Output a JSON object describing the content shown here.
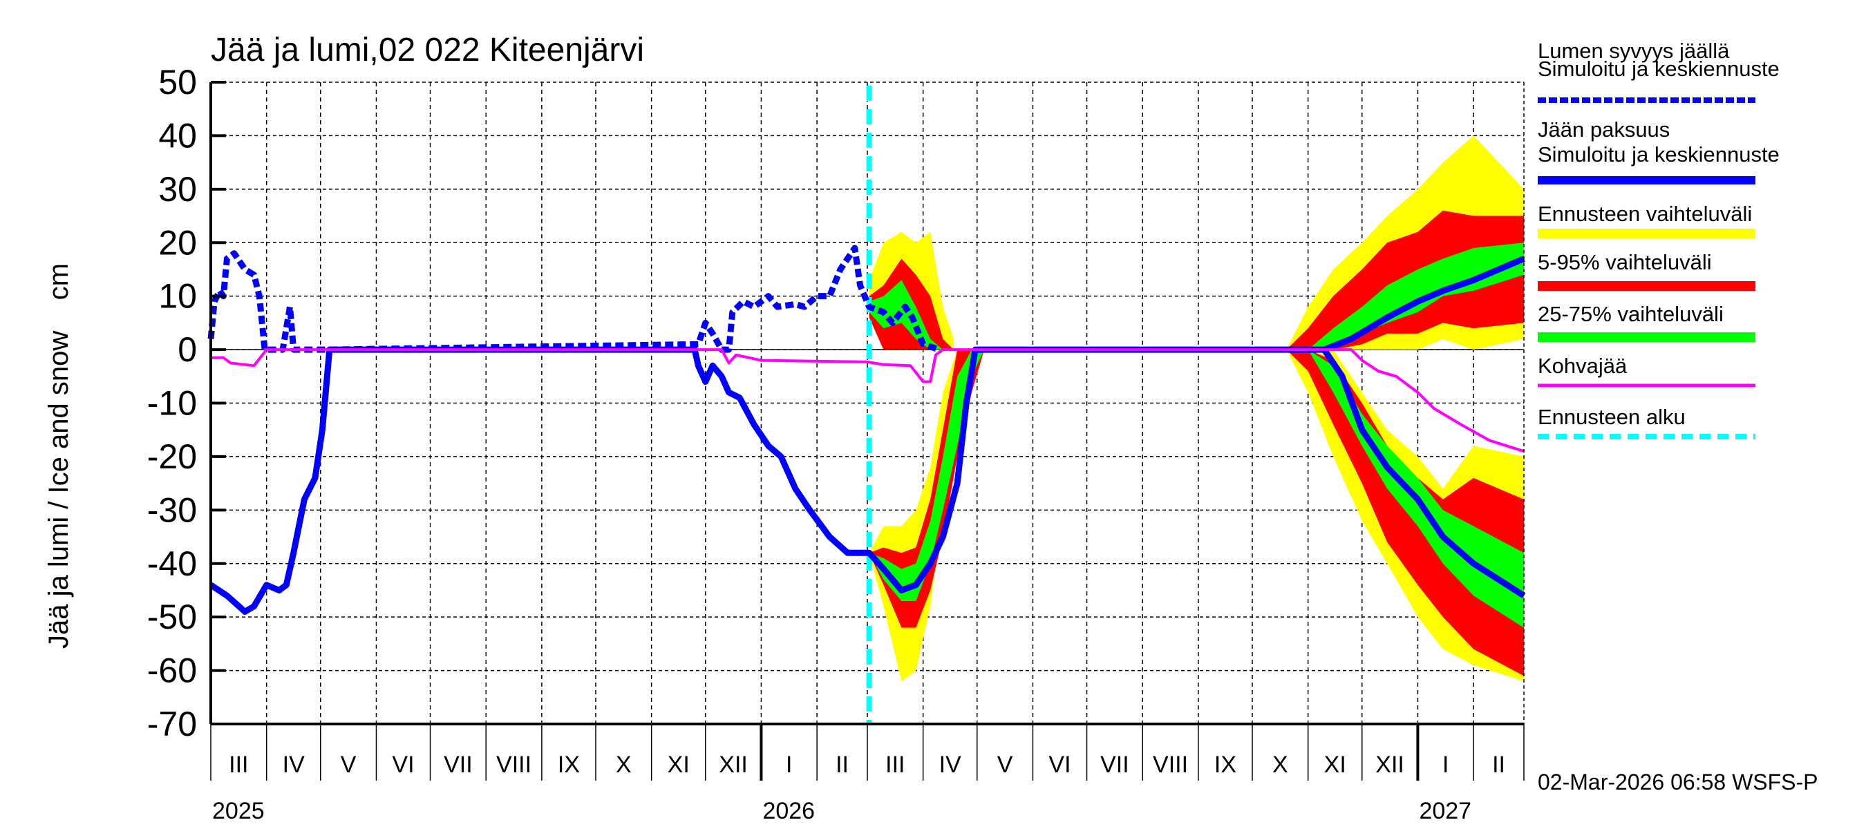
{
  "chart_data": {
    "type": "area",
    "title": "Jää ja lumi,02 022 Kiteenjärvi",
    "ylabel": "Jää ja lumi / Ice and snow    cm",
    "ylim": [
      -70,
      50
    ],
    "yticks": [
      50,
      40,
      30,
      20,
      10,
      0,
      -10,
      -20,
      -30,
      -40,
      -50,
      -60,
      -70
    ],
    "xlim": [
      "2025-03-01",
      "2027-03-01"
    ],
    "month_labels": [
      "III",
      "IV",
      "V",
      "VI",
      "VII",
      "VIII",
      "IX",
      "X",
      "XI",
      "XII",
      "I",
      "II",
      "III",
      "IV",
      "V",
      "VI",
      "VII",
      "VIII",
      "IX",
      "X",
      "XI",
      "XII",
      "I",
      "II"
    ],
    "year_labels": [
      {
        "label": "2025",
        "date": "2025-03-01"
      },
      {
        "label": "2026",
        "date": "2026-01-01"
      },
      {
        "label": "2027",
        "date": "2027-01-01"
      }
    ],
    "grid": true,
    "legend_placement": "right",
    "forecast_start": "2026-03-02",
    "footer": "02-Mar-2026 06:58 WSFS-P",
    "legend": [
      {
        "label": "Lumen syvyys jäällä",
        "label2": "Simuloitu ja keskiennuste",
        "color": "#0000ff",
        "style": "dashed"
      },
      {
        "label": "Jään paksuus",
        "label2": "Simuloitu ja keskiennuste",
        "color": "#0000ff",
        "style": "solid"
      },
      {
        "label": "Ennusteen vaihteluväli",
        "color": "#ffff00",
        "style": "band"
      },
      {
        "label": "5-95% vaihteluväli",
        "color": "#ff0000",
        "style": "band"
      },
      {
        "label": "25-75% vaihteluväli",
        "color": "#00ff00",
        "style": "band"
      },
      {
        "label": "Kohvajää",
        "color": "#ff00ff",
        "style": "solid"
      },
      {
        "label": "Ennusteen alku",
        "color": "#00ffff",
        "style": "dashed"
      }
    ],
    "bands": [
      {
        "part": "ice-spring",
        "points": [
          {
            "date": "2026-03-02",
            "yellow": [
              -38,
              -38
            ],
            "red": [
              -38,
              -38
            ],
            "green": [
              -38,
              -38
            ]
          },
          {
            "date": "2026-03-10",
            "yellow": [
              -48,
              -33
            ],
            "red": [
              -44,
              -37
            ],
            "green": [
              -43,
              -39
            ]
          },
          {
            "date": "2026-03-20",
            "yellow": [
              -62,
              -33
            ],
            "red": [
              -52,
              -38
            ],
            "green": [
              -47,
              -41
            ]
          },
          {
            "date": "2026-03-28",
            "yellow": [
              -60,
              -30
            ],
            "red": [
              -52,
              -37
            ],
            "green": [
              -47,
              -40
            ]
          },
          {
            "date": "2026-04-05",
            "yellow": [
              -48,
              -22
            ],
            "red": [
              -45,
              -28
            ],
            "green": [
              -40,
              -32
            ]
          },
          {
            "date": "2026-04-12",
            "yellow": [
              -30,
              -8
            ],
            "red": [
              -35,
              -15
            ],
            "green": [
              -30,
              -20
            ]
          },
          {
            "date": "2026-04-20",
            "yellow": [
              -15,
              0
            ],
            "red": [
              -20,
              0
            ],
            "green": [
              -18,
              -5
            ]
          },
          {
            "date": "2026-04-28",
            "yellow": [
              -5,
              0
            ],
            "red": [
              -8,
              0
            ],
            "green": [
              -5,
              0
            ]
          },
          {
            "date": "2026-05-05",
            "yellow": [
              0,
              0
            ],
            "red": [
              0,
              0
            ],
            "green": [
              0,
              0
            ]
          }
        ]
      },
      {
        "part": "snow-spring",
        "points": [
          {
            "date": "2026-03-02",
            "yellow": [
              7,
              13
            ],
            "red": [
              6,
              10
            ],
            "green": [
              7,
              9
            ]
          },
          {
            "date": "2026-03-10",
            "yellow": [
              0,
              20
            ],
            "red": [
              0,
              12
            ],
            "green": [
              4,
              10
            ]
          },
          {
            "date": "2026-03-20",
            "yellow": [
              0,
              22
            ],
            "red": [
              0,
              17
            ],
            "green": [
              5,
              13
            ]
          },
          {
            "date": "2026-03-28",
            "yellow": [
              0,
              20
            ],
            "red": [
              0,
              14
            ],
            "green": [
              2,
              8
            ]
          },
          {
            "date": "2026-04-05",
            "yellow": [
              0,
              22
            ],
            "red": [
              0,
              10
            ],
            "green": [
              0,
              2
            ]
          },
          {
            "date": "2026-04-12",
            "yellow": [
              0,
              8
            ],
            "red": [
              0,
              2
            ],
            "green": [
              0,
              0
            ]
          },
          {
            "date": "2026-04-18",
            "yellow": [
              0,
              2
            ],
            "red": [
              0,
              0
            ],
            "green": [
              0,
              0
            ]
          }
        ]
      },
      {
        "part": "ice-autumn",
        "points": [
          {
            "date": "2026-10-20",
            "yellow": [
              0,
              0
            ],
            "red": [
              0,
              0
            ],
            "green": [
              0,
              0
            ]
          },
          {
            "date": "2026-11-01",
            "yellow": [
              -8,
              0
            ],
            "red": [
              -4,
              0
            ],
            "green": [
              0,
              0
            ]
          },
          {
            "date": "2026-11-15",
            "yellow": [
              -20,
              0
            ],
            "red": [
              -14,
              -2
            ],
            "green": [
              -8,
              -3
            ]
          },
          {
            "date": "2026-12-01",
            "yellow": [
              -32,
              -8
            ],
            "red": [
              -25,
              -10
            ],
            "green": [
              -18,
              -12
            ]
          },
          {
            "date": "2026-12-15",
            "yellow": [
              -40,
              -15
            ],
            "red": [
              -36,
              -18
            ],
            "green": [
              -26,
              -18
            ]
          },
          {
            "date": "2027-01-01",
            "yellow": [
              -50,
              -20
            ],
            "red": [
              -44,
              -24
            ],
            "green": [
              -33,
              -24
            ]
          },
          {
            "date": "2027-01-15",
            "yellow": [
              -56,
              -26
            ],
            "red": [
              -50,
              -28
            ],
            "green": [
              -40,
              -30
            ]
          },
          {
            "date": "2027-02-01",
            "yellow": [
              -59,
              -18
            ],
            "red": [
              -56,
              -24
            ],
            "green": [
              -46,
              -33
            ]
          },
          {
            "date": "2027-03-01",
            "yellow": [
              -62,
              -20
            ],
            "red": [
              -61,
              -28
            ],
            "green": [
              -52,
              -38
            ]
          }
        ]
      },
      {
        "part": "snow-autumn",
        "points": [
          {
            "date": "2026-10-20",
            "yellow": [
              0,
              0
            ],
            "red": [
              0,
              0
            ],
            "green": [
              0,
              0
            ]
          },
          {
            "date": "2026-11-01",
            "yellow": [
              0,
              8
            ],
            "red": [
              0,
              4
            ],
            "green": [
              0,
              0
            ]
          },
          {
            "date": "2026-11-15",
            "yellow": [
              0,
              15
            ],
            "red": [
              0,
              10
            ],
            "green": [
              0,
              4
            ]
          },
          {
            "date": "2026-12-01",
            "yellow": [
              0,
              20
            ],
            "red": [
              1,
              15
            ],
            "green": [
              3,
              8
            ]
          },
          {
            "date": "2026-12-15",
            "yellow": [
              0,
              25
            ],
            "red": [
              3,
              20
            ],
            "green": [
              5,
              12
            ]
          },
          {
            "date": "2027-01-01",
            "yellow": [
              0,
              30
            ],
            "red": [
              3,
              22
            ],
            "green": [
              7,
              15
            ]
          },
          {
            "date": "2027-01-15",
            "yellow": [
              2,
              35
            ],
            "red": [
              5,
              26
            ],
            "green": [
              10,
              17
            ]
          },
          {
            "date": "2027-02-01",
            "yellow": [
              0,
              40
            ],
            "red": [
              4,
              25
            ],
            "green": [
              11,
              19
            ]
          },
          {
            "date": "2027-03-01",
            "yellow": [
              2,
              30
            ],
            "red": [
              5,
              25
            ],
            "green": [
              14,
              20
            ]
          }
        ]
      }
    ],
    "series": [
      {
        "name": "Lumen syvyys jäällä",
        "color": "#0000ff",
        "style": "dashed",
        "points": [
          [
            "2025-03-01",
            2
          ],
          [
            "2025-03-03",
            9
          ],
          [
            "2025-03-06",
            11
          ],
          [
            "2025-03-08",
            10
          ],
          [
            "2025-03-10",
            17
          ],
          [
            "2025-03-14",
            18
          ],
          [
            "2025-03-20",
            15
          ],
          [
            "2025-03-25",
            14
          ],
          [
            "2025-03-28",
            10
          ],
          [
            "2025-03-31",
            0
          ],
          [
            "2025-04-10",
            0
          ],
          [
            "2025-04-14",
            8
          ],
          [
            "2025-04-16",
            0
          ],
          [
            "2025-04-25",
            0
          ],
          [
            "2025-05-06",
            0
          ],
          [
            "2025-11-27",
            1
          ],
          [
            "2025-12-01",
            5
          ],
          [
            "2025-12-05",
            3
          ],
          [
            "2025-12-10",
            0
          ],
          [
            "2025-12-14",
            0
          ],
          [
            "2025-12-16",
            7
          ],
          [
            "2025-12-22",
            9
          ],
          [
            "2025-12-28",
            8
          ],
          [
            "2026-01-05",
            10
          ],
          [
            "2026-01-10",
            8
          ],
          [
            "2026-01-20",
            8.5
          ],
          [
            "2026-01-25",
            8
          ],
          [
            "2026-02-01",
            10
          ],
          [
            "2026-02-08",
            10
          ],
          [
            "2026-02-14",
            15
          ],
          [
            "2026-02-22",
            19
          ],
          [
            "2026-02-25",
            12
          ],
          [
            "2026-03-02",
            8
          ],
          [
            "2026-03-10",
            7
          ],
          [
            "2026-03-15",
            5
          ],
          [
            "2026-03-22",
            8
          ],
          [
            "2026-03-26",
            6
          ],
          [
            "2026-04-01",
            1
          ],
          [
            "2026-04-10",
            0
          ]
        ]
      },
      {
        "name": "Lumen syvyys jäällä (syksy)",
        "color": "#0000ff",
        "style": "solid-thick",
        "points": [
          [
            "2026-11-10",
            0
          ],
          [
            "2026-11-25",
            2
          ],
          [
            "2026-12-15",
            6
          ],
          [
            "2027-01-01",
            9
          ],
          [
            "2027-01-15",
            11
          ],
          [
            "2027-02-01",
            13
          ],
          [
            "2027-02-15",
            15
          ],
          [
            "2027-03-01",
            17
          ]
        ]
      },
      {
        "name": "Jään paksuus",
        "color": "#0000ff",
        "style": "solid",
        "points": [
          [
            "2025-03-01",
            -44
          ],
          [
            "2025-03-10",
            -46
          ],
          [
            "2025-03-20",
            -49
          ],
          [
            "2025-03-25",
            -48
          ],
          [
            "2025-04-01",
            -44
          ],
          [
            "2025-04-08",
            -45
          ],
          [
            "2025-04-12",
            -44
          ],
          [
            "2025-04-16",
            -38
          ],
          [
            "2025-04-22",
            -28
          ],
          [
            "2025-04-28",
            -24
          ],
          [
            "2025-05-02",
            -15
          ],
          [
            "2025-05-06",
            0
          ],
          [
            "2025-11-25",
            0
          ],
          [
            "2025-11-27",
            -3
          ],
          [
            "2025-12-01",
            -6
          ],
          [
            "2025-12-05",
            -3
          ],
          [
            "2025-12-10",
            -5
          ],
          [
            "2025-12-14",
            -8
          ],
          [
            "2025-12-20",
            -9
          ],
          [
            "2025-12-28",
            -14
          ],
          [
            "2026-01-05",
            -18
          ],
          [
            "2026-01-12",
            -20
          ],
          [
            "2026-01-20",
            -26
          ],
          [
            "2026-01-28",
            -30
          ],
          [
            "2026-02-08",
            -35
          ],
          [
            "2026-02-18",
            -38
          ],
          [
            "2026-03-02",
            -38
          ],
          [
            "2026-03-10",
            -41
          ],
          [
            "2026-03-20",
            -45
          ],
          [
            "2026-03-28",
            -44
          ],
          [
            "2026-04-05",
            -40
          ],
          [
            "2026-04-12",
            -35
          ],
          [
            "2026-04-20",
            -25
          ],
          [
            "2026-04-25",
            -10
          ],
          [
            "2026-04-30",
            0
          ],
          [
            "2026-11-10",
            0
          ],
          [
            "2026-11-20",
            -5
          ],
          [
            "2026-12-01",
            -15
          ],
          [
            "2026-12-15",
            -22
          ],
          [
            "2027-01-01",
            -28
          ],
          [
            "2027-01-15",
            -35
          ],
          [
            "2027-02-01",
            -40
          ],
          [
            "2027-03-01",
            -46
          ]
        ]
      },
      {
        "name": "Kohvajää",
        "color": "#ff00ff",
        "style": "solid",
        "points": [
          [
            "2025-03-01",
            -1.5
          ],
          [
            "2025-03-08",
            -1.5
          ],
          [
            "2025-03-12",
            -2.5
          ],
          [
            "2025-03-25",
            -3
          ],
          [
            "2025-04-01",
            0
          ],
          [
            "2025-12-10",
            0
          ],
          [
            "2025-12-14",
            -2.5
          ],
          [
            "2025-12-18",
            -1
          ],
          [
            "2025-12-25",
            -1.5
          ],
          [
            "2026-01-01",
            -2
          ],
          [
            "2026-03-01",
            -2.3
          ],
          [
            "2026-03-10",
            -2.8
          ],
          [
            "2026-03-25",
            -3
          ],
          [
            "2026-04-01",
            -6
          ],
          [
            "2026-04-05",
            -6
          ],
          [
            "2026-04-08",
            -1
          ],
          [
            "2026-04-12",
            0
          ],
          [
            "2026-11-25",
            0
          ],
          [
            "2026-12-01",
            -2
          ],
          [
            "2026-12-10",
            -4
          ],
          [
            "2026-12-20",
            -5
          ],
          [
            "2027-01-01",
            -8
          ],
          [
            "2027-01-10",
            -11
          ],
          [
            "2027-01-25",
            -14
          ],
          [
            "2027-02-10",
            -17
          ],
          [
            "2027-03-01",
            -19
          ]
        ]
      }
    ]
  }
}
